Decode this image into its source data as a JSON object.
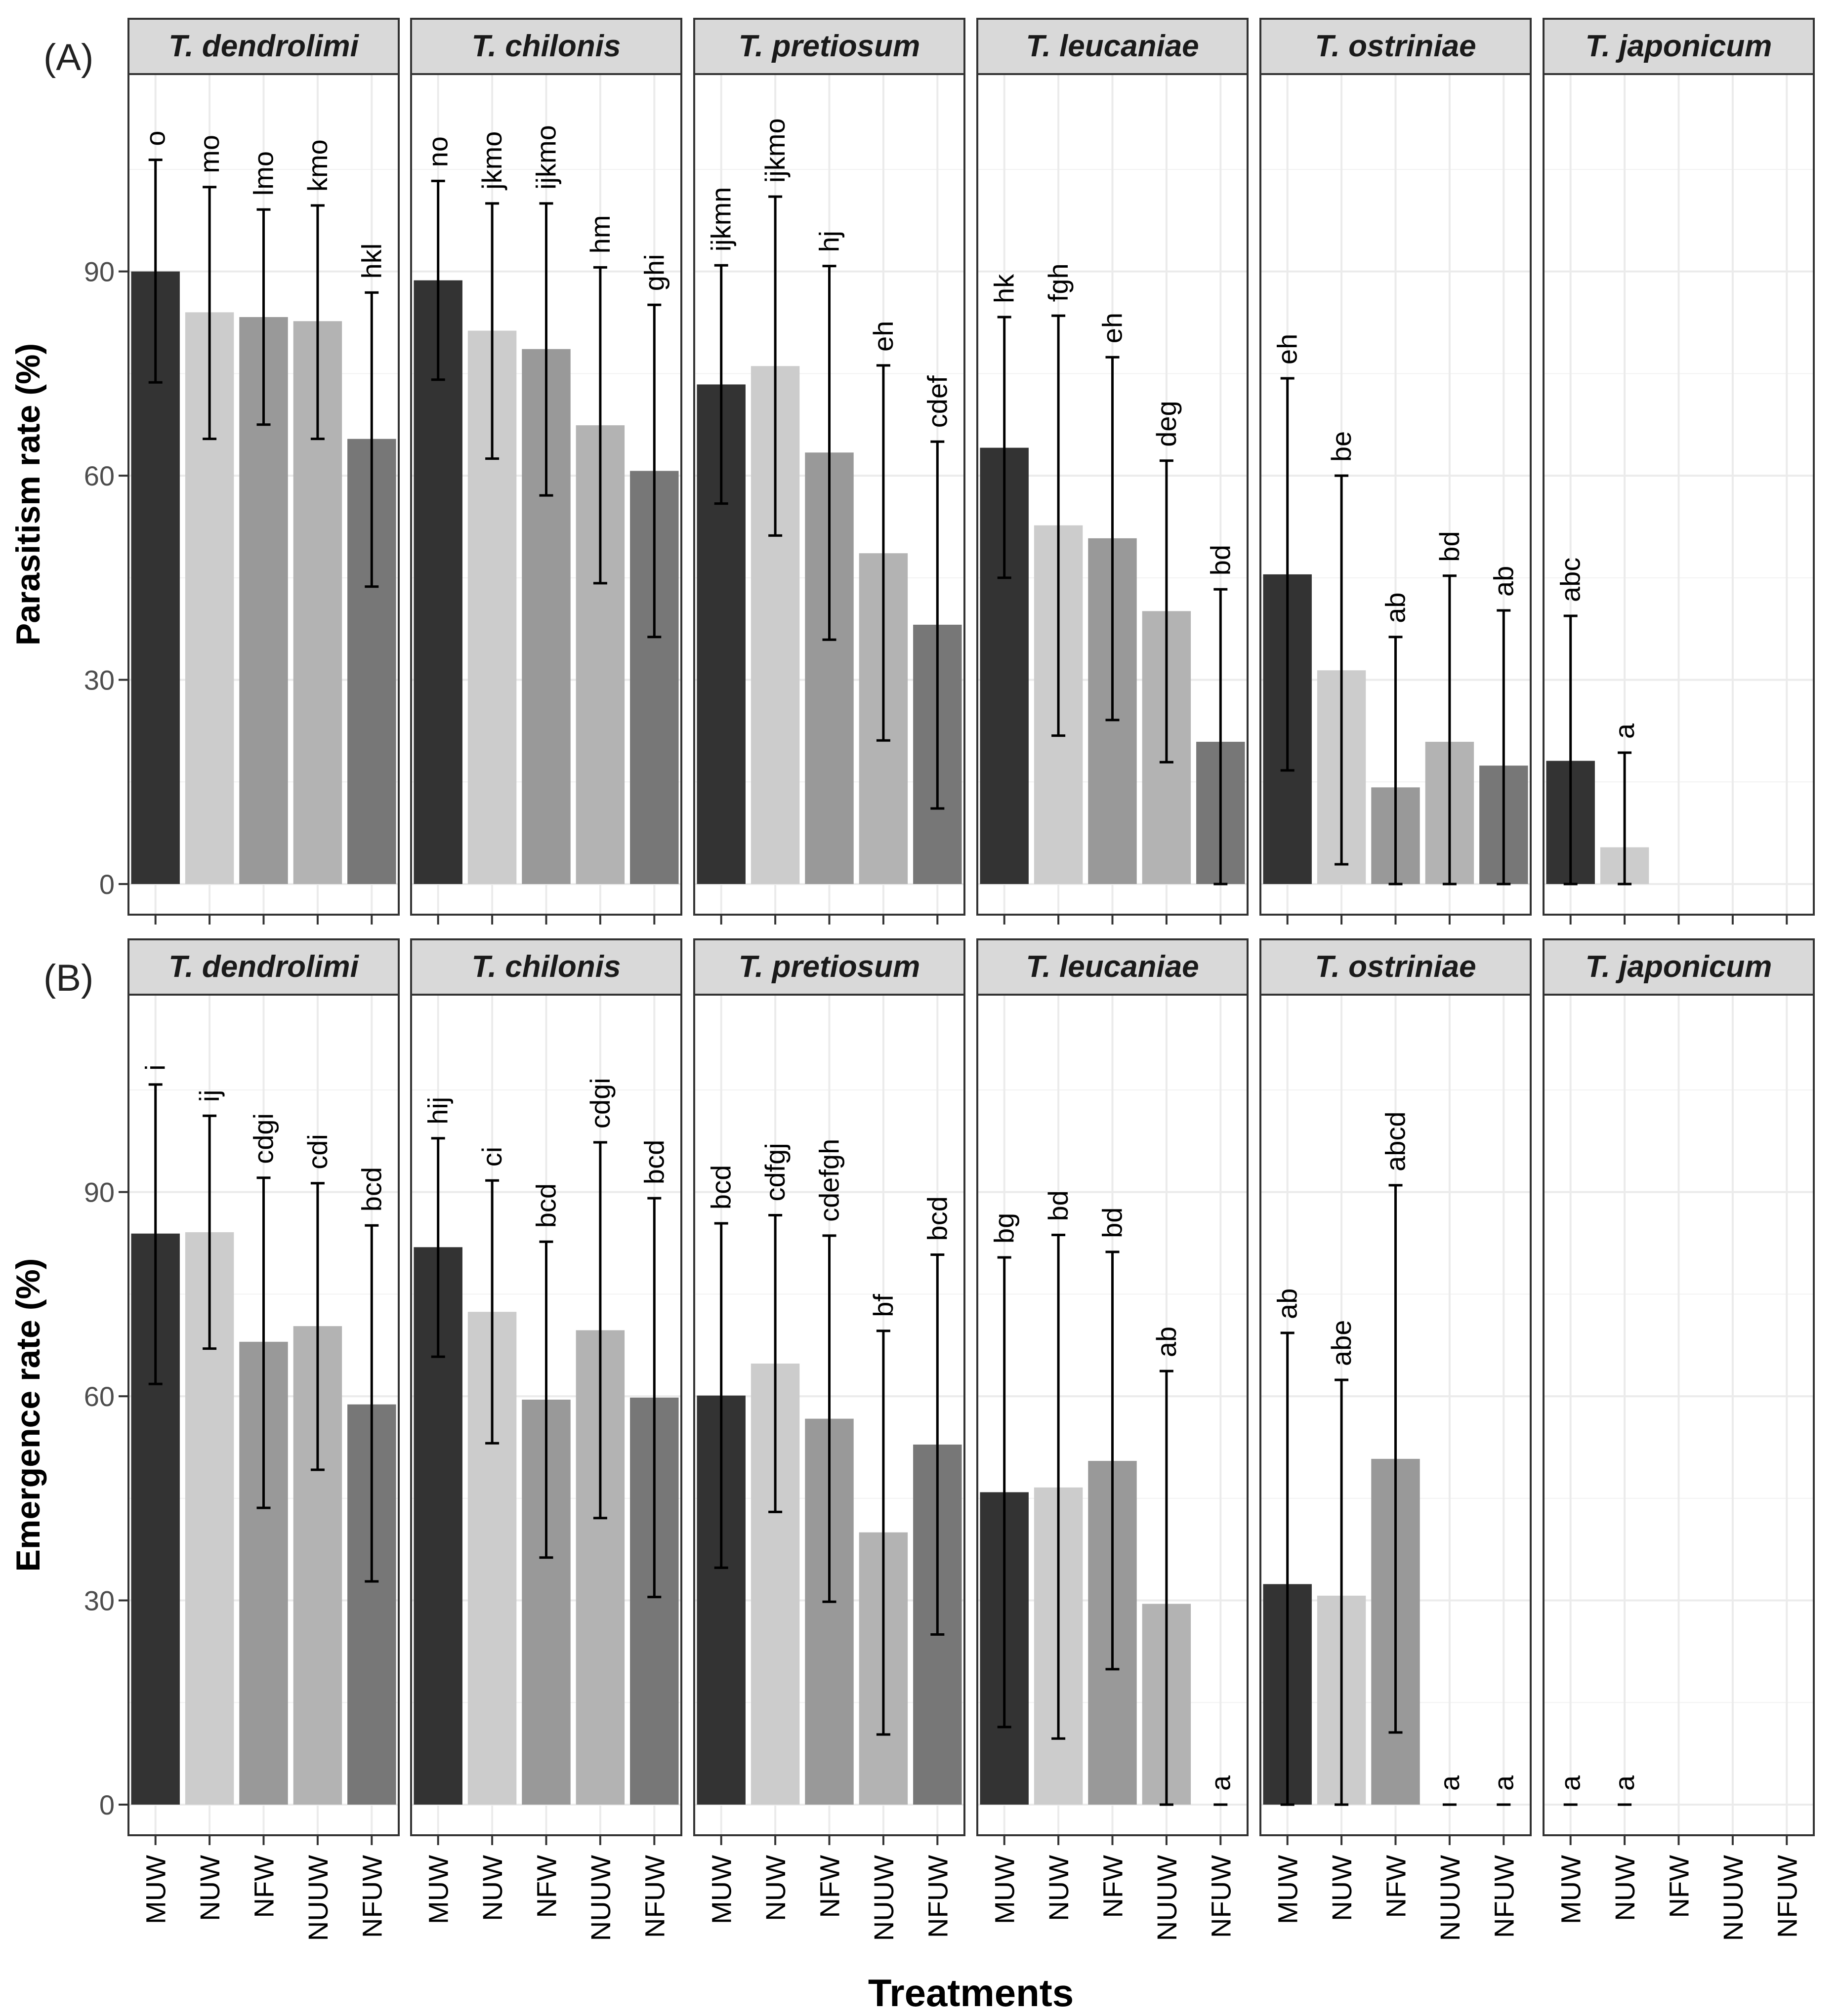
{
  "chart_data": {
    "type": "bar",
    "xlabel": "Treatments",
    "categories": [
      "MUW",
      "NUW",
      "NFW",
      "NUUW",
      "NFUW"
    ],
    "species": [
      "T. dendrolimi",
      "T. chilonis",
      "T. pretiosum",
      "T. leucaniae",
      "T. ostriniae",
      "T. japonicum"
    ],
    "bar_colors": [
      "#333333",
      "#cccccc",
      "#999999",
      "#b3b3b3",
      "#777777"
    ],
    "ylim": [
      -4.5,
      119
    ],
    "yticks": [
      0,
      30,
      60,
      90
    ],
    "panels": [
      {
        "tag": "(A)",
        "ylabel": "Parasitism rate (%)",
        "facets": [
          {
            "species": "T. dendrolimi",
            "values": [
              90,
              84,
              83.3,
              82.7,
              65.4
            ],
            "err_lo": [
              73.7,
              65.4,
              67.5,
              65.4,
              43.7
            ],
            "err_hi": [
              106.4,
              102.4,
              99.1,
              99.7,
              86.9
            ],
            "letters": [
              "o",
              "mo",
              "lmo",
              "kmo",
              "hkl"
            ]
          },
          {
            "species": "T. chilonis",
            "values": [
              88.7,
              81.3,
              78.6,
              67.4,
              60.7
            ],
            "err_lo": [
              74.1,
              62.5,
              57.1,
              44.2,
              36.3
            ],
            "err_hi": [
              103.3,
              100,
              100,
              90.6,
              85.1
            ],
            "letters": [
              "no",
              "jkmo",
              "ijkmo",
              "hm",
              "ghi"
            ]
          },
          {
            "species": "T. pretiosum",
            "values": [
              73.4,
              76.1,
              63.4,
              48.6,
              38.1
            ],
            "err_lo": [
              55.9,
              51.2,
              35.9,
              21.1,
              11.1
            ],
            "err_hi": [
              90.9,
              101,
              90.8,
              76.2,
              65
            ],
            "letters": [
              "ijkmn",
              "ijkmo",
              "hj",
              "eh",
              "cdef"
            ]
          },
          {
            "species": "T. leucaniae",
            "values": [
              64.1,
              52.7,
              50.8,
              40.1,
              20.9
            ],
            "err_lo": [
              45,
              21.8,
              24.1,
              17.9,
              0
            ],
            "err_hi": [
              83.3,
              83.5,
              77.4,
              62.2,
              43.3
            ],
            "letters": [
              "hk",
              "fgh",
              "eh",
              "deg",
              "bd"
            ]
          },
          {
            "species": "T. ostriniae",
            "values": [
              45.5,
              31.4,
              14.2,
              20.9,
              17.4
            ],
            "err_lo": [
              16.7,
              2.9,
              0,
              0,
              0
            ],
            "err_hi": [
              74.3,
              60,
              36.3,
              45.3,
              40.2
            ],
            "letters": [
              "eh",
              "be",
              "ab",
              "bd",
              "ab"
            ]
          },
          {
            "species": "T. japonicum",
            "values": [
              18.1,
              5.4,
              null,
              null,
              null
            ],
            "err_lo": [
              0,
              0,
              null,
              null,
              null
            ],
            "err_hi": [
              39.4,
              19.3,
              null,
              null,
              null
            ],
            "letters": [
              "abc",
              "a",
              "",
              "",
              ""
            ]
          }
        ]
      },
      {
        "tag": "(B)",
        "ylabel": "Emergence rate (%)",
        "facets": [
          {
            "species": "T. dendrolimi",
            "values": [
              83.9,
              84.1,
              68,
              70.3,
              58.8
            ],
            "err_lo": [
              61.8,
              67,
              43.6,
              49.2,
              32.8
            ],
            "err_hi": [
              105.8,
              101.2,
              92.1,
              91.3,
              85.1
            ],
            "letters": [
              "i",
              "ij",
              "cdgi",
              "cdi",
              "bcd"
            ]
          },
          {
            "species": "T. chilonis",
            "values": [
              81.9,
              72.4,
              59.5,
              69.7,
              59.8
            ],
            "err_lo": [
              65.8,
              53.1,
              36.3,
              42.1,
              30.5
            ],
            "err_hi": [
              97.9,
              91.7,
              82.7,
              97.3,
              89.1
            ],
            "letters": [
              "hij",
              "ci",
              "bcd",
              "cdgi",
              "bcd"
            ]
          },
          {
            "species": "T. pretiosum",
            "values": [
              60.1,
              64.8,
              56.7,
              40,
              52.9
            ],
            "err_lo": [
              34.8,
              43,
              29.8,
              10.3,
              25
            ],
            "err_hi": [
              85.4,
              86.6,
              83.6,
              69.6,
              80.8
            ],
            "letters": [
              "bcd",
              "cdfgj",
              "cdefgh",
              "bf",
              "bcd"
            ]
          },
          {
            "species": "T. leucaniae",
            "values": [
              45.9,
              46.6,
              50.5,
              29.5,
              0
            ],
            "err_lo": [
              11.4,
              9.7,
              19.9,
              0,
              0
            ],
            "err_hi": [
              80.4,
              83.7,
              81.2,
              63.7,
              0
            ],
            "letters": [
              "bg",
              "bd",
              "bd",
              "ab",
              "a"
            ]
          },
          {
            "species": "T. ostriniae",
            "values": [
              32.4,
              30.7,
              50.8,
              0,
              0
            ],
            "err_lo": [
              0,
              0,
              10.6,
              0,
              0
            ],
            "err_hi": [
              69.3,
              62.4,
              91,
              0,
              0
            ],
            "letters": [
              "ab",
              "abe",
              "abcd",
              "a",
              "a"
            ]
          },
          {
            "species": "T. japonicum",
            "values": [
              0,
              0,
              null,
              null,
              null
            ],
            "err_lo": [
              0,
              0,
              null,
              null,
              null
            ],
            "err_hi": [
              0,
              0,
              null,
              null,
              null
            ],
            "letters": [
              "a",
              "a",
              "",
              "",
              ""
            ]
          }
        ]
      }
    ]
  }
}
